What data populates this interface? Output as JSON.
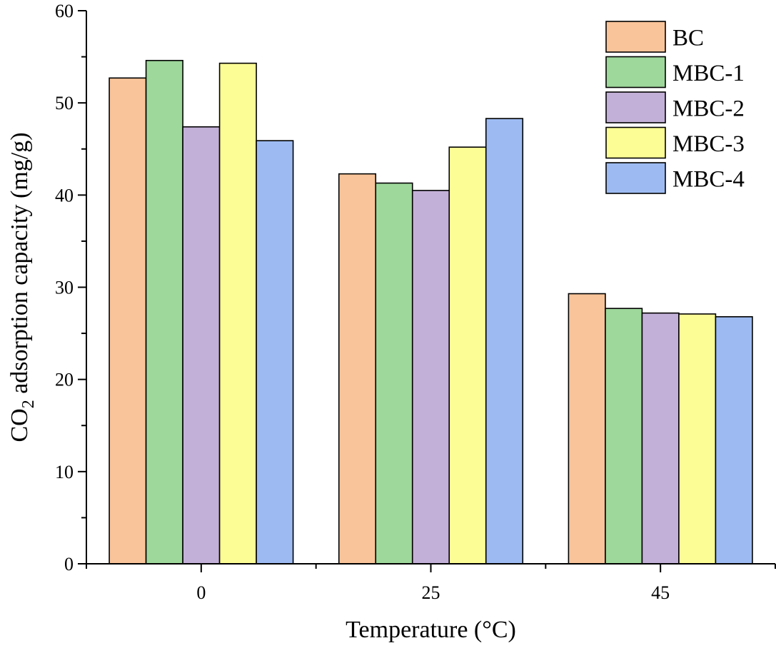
{
  "chart_data": {
    "type": "bar",
    "title": "",
    "xlabel": "Temperature (°C)",
    "ylabel_main": "CO",
    "ylabel_sub": "2",
    "ylabel_rest": " adsorption capacity (mg/g)",
    "ylim": [
      0,
      60
    ],
    "yticks": [
      "0",
      "10",
      "20",
      "30",
      "40",
      "50",
      "60"
    ],
    "categories": [
      "0",
      "25",
      "45"
    ],
    "legend_position": "top-right",
    "grid": false,
    "series": [
      {
        "name": "BC",
        "color": "#F9C49A",
        "values": [
          52.7,
          42.3,
          29.3
        ]
      },
      {
        "name": "MBC-1",
        "color": "#9ED89B",
        "values": [
          54.6,
          41.3,
          27.7
        ]
      },
      {
        "name": "MBC-2",
        "color": "#C3B0D8",
        "values": [
          47.4,
          40.5,
          27.2
        ]
      },
      {
        "name": "MBC-3",
        "color": "#FDFD96",
        "values": [
          54.3,
          45.2,
          27.1
        ]
      },
      {
        "name": "MBC-4",
        "color": "#9DBBF2",
        "values": [
          45.9,
          48.3,
          26.8
        ]
      }
    ]
  }
}
